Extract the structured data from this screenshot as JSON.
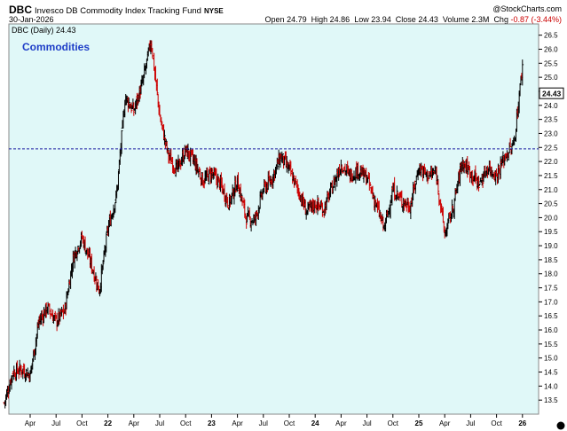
{
  "header": {
    "ticker": "DBC",
    "fund_name": "Invesco DB Commodity Index Tracking Fund",
    "exchange": "NYSE",
    "date": "30-Jan-2026",
    "copyright": "@StockCharts.com",
    "open_label": "Open",
    "open": "24.79",
    "high_label": "High",
    "high": "24.86",
    "low_label": "Low",
    "low": "23.94",
    "close_label": "Close",
    "close": "24.43",
    "volume_label": "Volume",
    "volume": "2.3M",
    "chg_label": "Chg",
    "chg": "-0.87 (-3.44%)"
  },
  "legend_text": "DBC (Daily) 24.43",
  "annotation": "Commodities",
  "colors": {
    "plot_bg": "#e0f8f8",
    "up_bar": "#000000",
    "down_bar": "#cc0000",
    "reference_line": "#1a1aa0",
    "annotation": "#1f3fc8",
    "price_tag_border": "#000000"
  },
  "chart_data": {
    "type": "line",
    "style": "ohlc-bars",
    "title": "DBC (Daily) 24.43",
    "xlabel": "",
    "ylabel": "",
    "ylim": [
      13.0,
      26.9
    ],
    "x_tick_labels": [
      "Apr",
      "Jul",
      "Oct",
      "22",
      "Apr",
      "Jul",
      "Oct",
      "23",
      "Apr",
      "Jul",
      "Oct",
      "24",
      "Apr",
      "Jul",
      "Oct",
      "25",
      "Apr",
      "Jul",
      "Oct",
      "26"
    ],
    "y_ticks": [
      13.5,
      14.0,
      14.5,
      15.0,
      15.5,
      16.0,
      16.5,
      17.0,
      17.5,
      18.0,
      18.5,
      19.0,
      19.5,
      20.0,
      20.5,
      21.0,
      21.5,
      22.0,
      22.5,
      23.0,
      23.5,
      24.0,
      24.5,
      25.0,
      25.5,
      26.0,
      26.5
    ],
    "grid": false,
    "reference_line": {
      "value": 22.45,
      "style": "dashed"
    },
    "last_price": 24.43,
    "series": [
      {
        "x_start": "Jan-2021",
        "x_end": "Jan-2026",
        "keypoints": [
          {
            "x": "Jan-2021",
            "y": 13.4
          },
          {
            "x": "Feb-2021",
            "y": 14.5
          },
          {
            "x": "Mar-2021",
            "y": 14.6
          },
          {
            "x": "Apr-2021",
            "y": 14.4
          },
          {
            "x": "May-2021",
            "y": 16.3
          },
          {
            "x": "Jun-2021",
            "y": 16.8
          },
          {
            "x": "Jul-2021",
            "y": 16.3
          },
          {
            "x": "Aug-2021",
            "y": 16.7
          },
          {
            "x": "Sep-2021",
            "y": 18.6
          },
          {
            "x": "Oct-2021",
            "y": 19.3
          },
          {
            "x": "Nov-2021",
            "y": 18.4
          },
          {
            "x": "Dec-2021",
            "y": 17.4
          },
          {
            "x": "Jan-2022",
            "y": 19.6
          },
          {
            "x": "Feb-2022",
            "y": 20.8
          },
          {
            "x": "Mar-2022",
            "y": 24.3
          },
          {
            "x": "Apr-2022",
            "y": 23.8
          },
          {
            "x": "May-2022",
            "y": 24.8
          },
          {
            "x": "Jun-2022",
            "y": 26.3
          },
          {
            "x": "Jul-2022",
            "y": 23.6
          },
          {
            "x": "Aug-2022",
            "y": 22.2
          },
          {
            "x": "Sep-2022",
            "y": 21.7
          },
          {
            "x": "Oct-2022",
            "y": 22.4
          },
          {
            "x": "Nov-2022",
            "y": 22.0
          },
          {
            "x": "Dec-2022",
            "y": 21.3
          },
          {
            "x": "Jan-2023",
            "y": 21.6
          },
          {
            "x": "Feb-2023",
            "y": 21.2
          },
          {
            "x": "Mar-2023",
            "y": 20.5
          },
          {
            "x": "Apr-2023",
            "y": 21.3
          },
          {
            "x": "May-2023",
            "y": 20.0
          },
          {
            "x": "Jun-2023",
            "y": 19.9
          },
          {
            "x": "Jul-2023",
            "y": 21.0
          },
          {
            "x": "Aug-2023",
            "y": 21.4
          },
          {
            "x": "Sep-2023",
            "y": 22.2
          },
          {
            "x": "Oct-2023",
            "y": 21.7
          },
          {
            "x": "Nov-2023",
            "y": 21.0
          },
          {
            "x": "Dec-2023",
            "y": 20.2
          },
          {
            "x": "Jan-2024",
            "y": 20.5
          },
          {
            "x": "Feb-2024",
            "y": 20.3
          },
          {
            "x": "Mar-2024",
            "y": 21.1
          },
          {
            "x": "Apr-2024",
            "y": 21.9
          },
          {
            "x": "May-2024",
            "y": 21.5
          },
          {
            "x": "Jun-2024",
            "y": 21.7
          },
          {
            "x": "Jul-2024",
            "y": 21.4
          },
          {
            "x": "Aug-2024",
            "y": 20.5
          },
          {
            "x": "Sep-2024",
            "y": 19.6
          },
          {
            "x": "Oct-2024",
            "y": 21.0
          },
          {
            "x": "Nov-2024",
            "y": 20.6
          },
          {
            "x": "Dec-2024",
            "y": 20.4
          },
          {
            "x": "Jan-2025",
            "y": 21.8
          },
          {
            "x": "Feb-2025",
            "y": 21.5
          },
          {
            "x": "Mar-2025",
            "y": 21.6
          },
          {
            "x": "Apr-2025",
            "y": 19.4
          },
          {
            "x": "May-2025",
            "y": 20.4
          },
          {
            "x": "Jun-2025",
            "y": 22.0
          },
          {
            "x": "Jul-2025",
            "y": 21.6
          },
          {
            "x": "Aug-2025",
            "y": 21.2
          },
          {
            "x": "Sep-2025",
            "y": 21.8
          },
          {
            "x": "Oct-2025",
            "y": 21.5
          },
          {
            "x": "Nov-2025",
            "y": 22.2
          },
          {
            "x": "Dec-2025",
            "y": 22.6
          },
          {
            "x": "Jan-2026",
            "y": 25.4
          }
        ]
      }
    ]
  }
}
